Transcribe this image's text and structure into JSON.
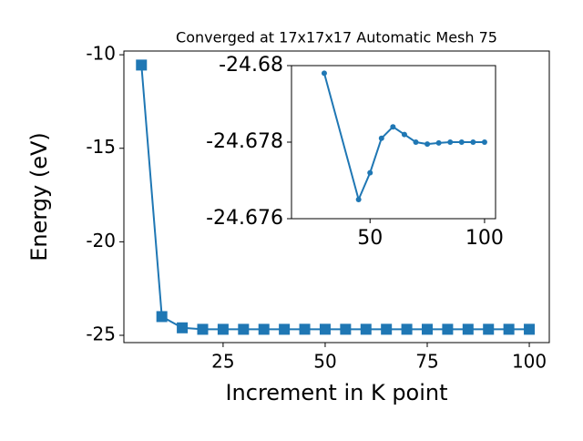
{
  "chart_data": [
    {
      "type": "line",
      "title": "Converged at 17x17x17 Automatic Mesh 75",
      "x_label": "Increment in K point",
      "y_label": "Energy (eV)",
      "x": [
        5,
        10,
        15,
        20,
        25,
        30,
        35,
        40,
        45,
        50,
        55,
        60,
        65,
        70,
        75,
        80,
        85,
        90,
        95,
        100
      ],
      "series": [
        {
          "color": "#1f77b4",
          "marker": "square",
          "values": [
            -10.55,
            -24.0,
            -24.6,
            -24.68,
            -24.68,
            -24.68,
            -24.68,
            -24.68,
            -24.677,
            -24.677,
            -24.678,
            -24.678,
            -24.678,
            -24.678,
            -24.678,
            -24.678,
            -24.678,
            -24.678,
            -24.678,
            -24.678
          ]
        }
      ],
      "xlim": [
        0.7,
        104.9
      ],
      "ylim": [
        -25.39,
        -9.8
      ],
      "xticks": [
        25,
        50,
        75,
        100
      ],
      "yticks": [
        -25,
        -20,
        -15,
        -10
      ]
    },
    {
      "type": "line",
      "x": [
        30,
        45,
        50,
        55,
        60,
        65,
        70,
        75,
        80,
        85,
        90,
        95,
        100
      ],
      "series": [
        {
          "color": "#1f77b4",
          "marker": "circle",
          "values": [
            -24.6798,
            -24.6765,
            -24.6772,
            -24.6781,
            -24.6784,
            -24.6782,
            -24.678,
            -24.67795,
            -24.67798,
            -24.678,
            -24.678,
            -24.678,
            -24.678
          ]
        }
      ],
      "xlim": [
        15.7,
        104.8
      ],
      "ylim": [
        -24.676,
        -24.68
      ],
      "xticks": [
        50,
        100
      ],
      "yticks": [
        -24.68,
        -24.678,
        -24.676
      ]
    }
  ]
}
